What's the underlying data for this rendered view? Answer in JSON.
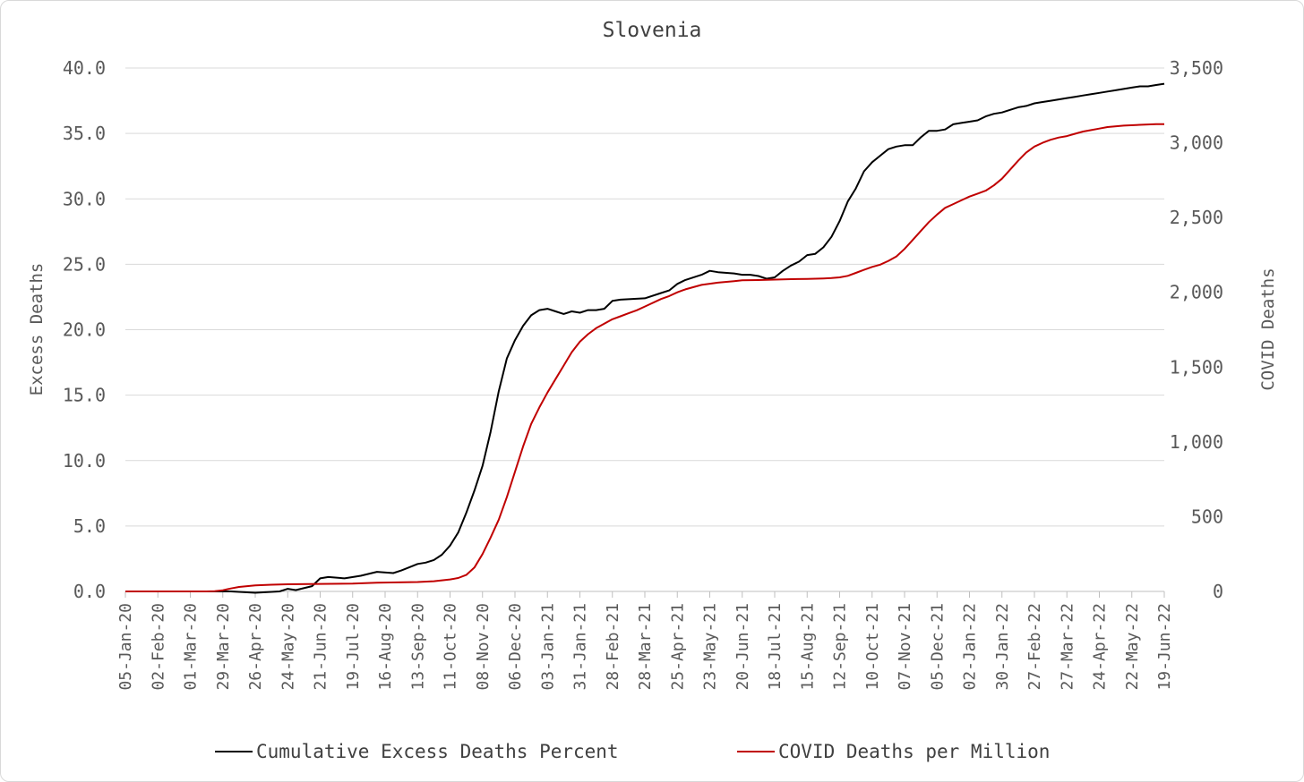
{
  "chart_data": {
    "type": "line",
    "title": "Slovenia",
    "ylabel_left": "Excess Deaths",
    "ylabel_right": "COVID Deaths",
    "ylim_left": [
      0,
      40
    ],
    "ylim_right": [
      0,
      3500
    ],
    "left_ticks": [
      "0.0",
      "5.0",
      "10.0",
      "15.0",
      "20.0",
      "25.0",
      "30.0",
      "35.0",
      "40.0"
    ],
    "right_ticks": [
      "0",
      "500",
      "1,000",
      "1,500",
      "2,000",
      "2,500",
      "3,000",
      "3,500"
    ],
    "x_ticks": [
      "05-Jan-20",
      "02-Feb-20",
      "01-Mar-20",
      "29-Mar-20",
      "26-Apr-20",
      "24-May-20",
      "21-Jun-20",
      "19-Jul-20",
      "16-Aug-20",
      "13-Sep-20",
      "11-Oct-20",
      "08-Nov-20",
      "06-Dec-20",
      "03-Jan-21",
      "31-Jan-21",
      "28-Feb-21",
      "28-Mar-21",
      "25-Apr-21",
      "23-May-21",
      "20-Jun-21",
      "18-Jul-21",
      "15-Aug-21",
      "12-Sep-21",
      "10-Oct-21",
      "07-Nov-21",
      "05-Dec-21",
      "02-Jan-22",
      "30-Jan-22",
      "27-Feb-22",
      "27-Mar-22",
      "24-Apr-22",
      "22-May-22",
      "19-Jun-22"
    ],
    "grid": true,
    "legend_position": "bottom",
    "series": [
      {
        "name": "Cumulative Excess Deaths Percent",
        "axis": "left",
        "color": "#000000",
        "x": [
          "05-Jan-20",
          "05-Apr-20",
          "26-Apr-20",
          "17-May-20",
          "24-May-20",
          "31-May-20",
          "14-Jun-20",
          "21-Jun-20",
          "28-Jun-20",
          "12-Jul-20",
          "26-Jul-20",
          "09-Aug-20",
          "23-Aug-20",
          "30-Aug-20",
          "13-Sep-20",
          "20-Sep-20",
          "27-Sep-20",
          "04-Oct-20",
          "11-Oct-20",
          "18-Oct-20",
          "25-Oct-20",
          "01-Nov-20",
          "08-Nov-20",
          "15-Nov-20",
          "22-Nov-20",
          "29-Nov-20",
          "06-Dec-20",
          "13-Dec-20",
          "20-Dec-20",
          "27-Dec-20",
          "03-Jan-21",
          "10-Jan-21",
          "17-Jan-21",
          "24-Jan-21",
          "31-Jan-21",
          "07-Feb-21",
          "14-Feb-21",
          "21-Feb-21",
          "28-Feb-21",
          "07-Mar-21",
          "28-Mar-21",
          "11-Apr-21",
          "18-Apr-21",
          "25-Apr-21",
          "02-May-21",
          "16-May-21",
          "23-May-21",
          "30-May-21",
          "13-Jun-21",
          "20-Jun-21",
          "27-Jun-21",
          "04-Jul-21",
          "11-Jul-21",
          "18-Jul-21",
          "25-Jul-21",
          "01-Aug-21",
          "08-Aug-21",
          "15-Aug-21",
          "22-Aug-21",
          "29-Aug-21",
          "05-Sep-21",
          "12-Sep-21",
          "19-Sep-21",
          "26-Sep-21",
          "03-Oct-21",
          "10-Oct-21",
          "17-Oct-21",
          "24-Oct-21",
          "31-Oct-21",
          "07-Nov-21",
          "14-Nov-21",
          "21-Nov-21",
          "28-Nov-21",
          "05-Dec-21",
          "12-Dec-21",
          "19-Dec-21",
          "26-Dec-21",
          "02-Jan-22",
          "09-Jan-22",
          "16-Jan-22",
          "23-Jan-22",
          "30-Jan-22",
          "06-Feb-22",
          "13-Feb-22",
          "20-Feb-22",
          "27-Feb-22",
          "06-Mar-22",
          "13-Mar-22",
          "20-Mar-22",
          "27-Mar-22",
          "03-Apr-22",
          "10-Apr-22",
          "17-Apr-22",
          "24-Apr-22",
          "01-May-22",
          "08-May-22",
          "15-May-22",
          "22-May-22",
          "29-May-22",
          "05-Jun-22",
          "12-Jun-22",
          "19-Jun-22"
        ],
        "values": [
          0.0,
          0.0,
          -0.1,
          0.0,
          0.2,
          0.1,
          0.4,
          1.0,
          1.1,
          1.0,
          1.2,
          1.5,
          1.4,
          1.6,
          2.1,
          2.2,
          2.4,
          2.8,
          3.5,
          4.5,
          6.0,
          7.7,
          9.6,
          12.2,
          15.3,
          17.8,
          19.2,
          20.3,
          21.1,
          21.5,
          21.6,
          21.4,
          21.2,
          21.4,
          21.3,
          21.5,
          21.5,
          21.6,
          22.2,
          22.3,
          22.4,
          22.8,
          23.0,
          23.5,
          23.8,
          24.2,
          24.5,
          24.4,
          24.3,
          24.2,
          24.2,
          24.1,
          23.9,
          24.0,
          24.5,
          24.9,
          25.2,
          25.7,
          25.8,
          26.3,
          27.1,
          28.3,
          29.8,
          30.8,
          32.1,
          32.8,
          33.3,
          33.8,
          34.0,
          34.1,
          34.1,
          34.7,
          35.2,
          35.2,
          35.3,
          35.7,
          35.8,
          35.9,
          36.0,
          36.3,
          36.5,
          36.6,
          36.8,
          37.0,
          37.1,
          37.3,
          37.4,
          37.5,
          37.6,
          37.7,
          37.8,
          37.9,
          38.0,
          38.1,
          38.2,
          38.3,
          38.4,
          38.5,
          38.6,
          38.6,
          38.7,
          38.8
        ]
      },
      {
        "name": "COVID Deaths per Million",
        "axis": "right",
        "color": "#c00000",
        "x": [
          "05-Jan-20",
          "15-Mar-20",
          "22-Mar-20",
          "29-Mar-20",
          "05-Apr-20",
          "12-Apr-20",
          "26-Apr-20",
          "10-May-20",
          "24-May-20",
          "21-Jun-20",
          "19-Jul-20",
          "09-Aug-20",
          "13-Sep-20",
          "27-Sep-20",
          "11-Oct-20",
          "18-Oct-20",
          "25-Oct-20",
          "01-Nov-20",
          "08-Nov-20",
          "15-Nov-20",
          "22-Nov-20",
          "29-Nov-20",
          "06-Dec-20",
          "13-Dec-20",
          "20-Dec-20",
          "27-Dec-20",
          "03-Jan-21",
          "10-Jan-21",
          "17-Jan-21",
          "24-Jan-21",
          "31-Jan-21",
          "07-Feb-21",
          "14-Feb-21",
          "21-Feb-21",
          "28-Feb-21",
          "07-Mar-21",
          "14-Mar-21",
          "21-Mar-21",
          "28-Mar-21",
          "11-Apr-21",
          "18-Apr-21",
          "25-Apr-21",
          "02-May-21",
          "16-May-21",
          "30-May-21",
          "13-Jun-21",
          "20-Jun-21",
          "04-Jul-21",
          "18-Jul-21",
          "01-Aug-21",
          "15-Aug-21",
          "29-Aug-21",
          "05-Sep-21",
          "12-Sep-21",
          "19-Sep-21",
          "26-Sep-21",
          "03-Oct-21",
          "10-Oct-21",
          "17-Oct-21",
          "24-Oct-21",
          "31-Oct-21",
          "07-Nov-21",
          "14-Nov-21",
          "21-Nov-21",
          "28-Nov-21",
          "05-Dec-21",
          "12-Dec-21",
          "19-Dec-21",
          "26-Dec-21",
          "02-Jan-22",
          "09-Jan-22",
          "16-Jan-22",
          "23-Jan-22",
          "30-Jan-22",
          "06-Feb-22",
          "13-Feb-22",
          "20-Feb-22",
          "27-Feb-22",
          "06-Mar-22",
          "13-Mar-22",
          "20-Mar-22",
          "27-Mar-22",
          "03-Apr-22",
          "10-Apr-22",
          "17-Apr-22",
          "24-Apr-22",
          "01-May-22",
          "15-May-22",
          "29-May-22",
          "12-Jun-22",
          "19-Jun-22"
        ],
        "values": [
          0,
          0,
          2,
          8,
          20,
          30,
          40,
          45,
          48,
          50,
          52,
          58,
          63,
          68,
          80,
          90,
          110,
          160,
          250,
          360,
          480,
          630,
          800,
          970,
          1120,
          1230,
          1330,
          1420,
          1510,
          1600,
          1670,
          1720,
          1760,
          1790,
          1820,
          1840,
          1860,
          1880,
          1905,
          1955,
          1975,
          2000,
          2020,
          2050,
          2065,
          2075,
          2080,
          2082,
          2085,
          2088,
          2090,
          2093,
          2095,
          2100,
          2110,
          2130,
          2150,
          2170,
          2185,
          2210,
          2240,
          2290,
          2350,
          2410,
          2470,
          2520,
          2565,
          2590,
          2615,
          2640,
          2660,
          2680,
          2715,
          2760,
          2820,
          2880,
          2935,
          2975,
          3000,
          3020,
          3035,
          3045,
          3060,
          3075,
          3085,
          3095,
          3105,
          3115,
          3120,
          3125,
          3125
        ]
      }
    ]
  }
}
